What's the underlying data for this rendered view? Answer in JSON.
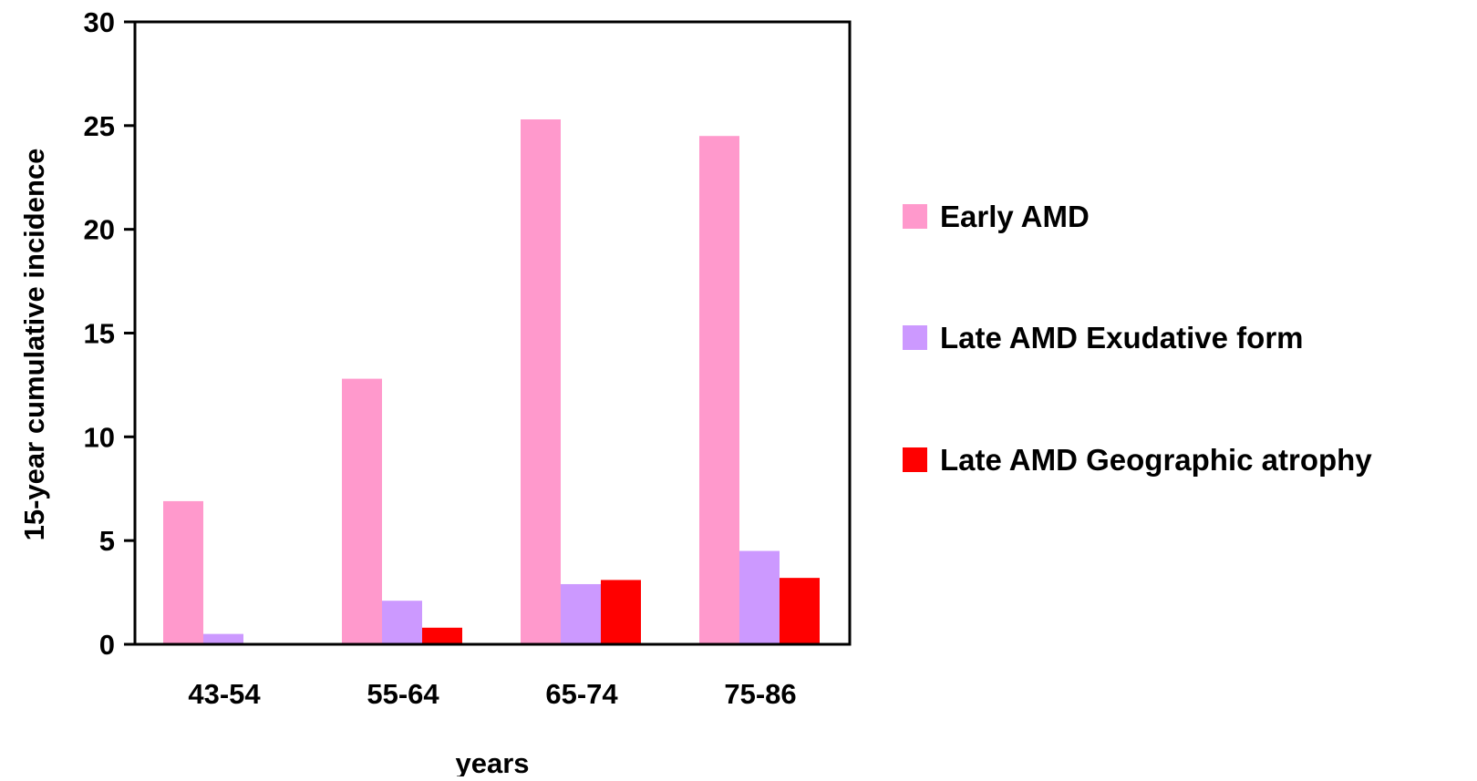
{
  "chart_data": {
    "type": "bar",
    "title": "",
    "xlabel": "years",
    "ylabel": "15-year cumulative incidence",
    "categories": [
      "43-54",
      "55-64",
      "65-74",
      "75-86"
    ],
    "ylim": [
      0,
      30
    ],
    "yticks": [
      0,
      5,
      10,
      15,
      20,
      25,
      30
    ],
    "grid": false,
    "legend_position": "right",
    "series": [
      {
        "name": "Early AMD",
        "color": "#ff99cc",
        "values": [
          6.9,
          12.8,
          25.3,
          24.5
        ]
      },
      {
        "name": "Late AMD Exudative form",
        "color": "#cc99ff",
        "values": [
          0.5,
          2.1,
          2.9,
          4.5
        ]
      },
      {
        "name": "Late AMD Geographic atrophy",
        "color": "#ff0000",
        "values": [
          0,
          0.8,
          3.1,
          3.2
        ]
      }
    ]
  }
}
